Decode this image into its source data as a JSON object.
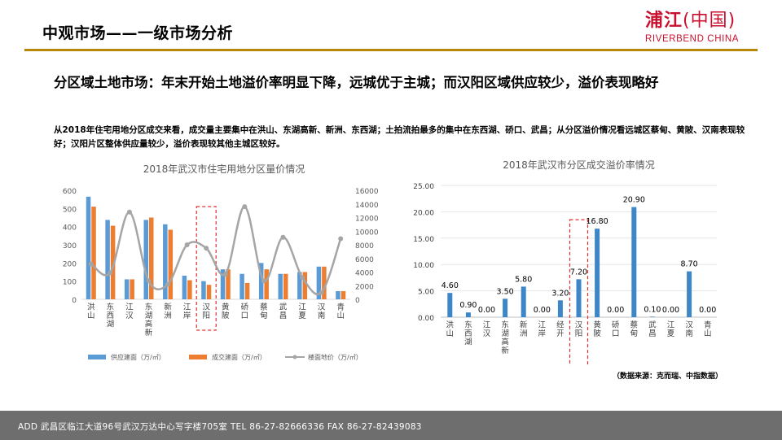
{
  "header": {
    "title": "中观市场——一级市场分析",
    "logo_cn_main": "浦江",
    "logo_cn_sub": "(中国)",
    "logo_en": "RIVERBEND CHINA"
  },
  "headline": "分区域土地市场：年末开始土地溢价率明显下降，远城优于主城；而汉阳区域供应较少，溢价表现略好",
  "description": "从2018年住宅用地分区成交来看，成交量主要集中在洪山、东湖高新、新洲、东西湖；土拍流拍最多的集中在东西湖、硚口、武昌；从分区溢价情况看远城区蔡甸、黄陂、汉南表现较好；汉阳片区整体供应量较少，溢价表现较其他主城区较好。",
  "source_note": "（数据来源：克而瑞、中指数据）",
  "footer": {
    "text": "ADD  武昌区临江大道96号武汉万达中心写字楼705室    TEL  86-27-82666336  FAX  86-27-82439083"
  },
  "colors": {
    "supply": "#5b9bd5",
    "deal": "#ed7d31",
    "price": "#a5a5a5",
    "bar2": "#3d86c8",
    "highlight": "#e03030",
    "rule": "#b8860b",
    "footer_bg": "#6e6e6e"
  },
  "chart_data": [
    {
      "type": "bar",
      "title": "2018年武汉市住宅用地分区量价情况",
      "categories": [
        "洪山",
        "东西湖",
        "江汉",
        "东湖高新",
        "新洲",
        "江岸",
        "汉阳",
        "黄陂",
        "硚口",
        "蔡甸",
        "武昌",
        "江夏",
        "汉南",
        "青山"
      ],
      "series": [
        {
          "name": "供应建面（万/㎡）",
          "kind": "bar",
          "axis": "left",
          "values": [
            565,
            437,
            110,
            437,
            413,
            130,
            100,
            165,
            140,
            200,
            140,
            150,
            180,
            45
          ]
        },
        {
          "name": "成交建面（万/㎡）",
          "kind": "bar",
          "axis": "left",
          "values": [
            510,
            405,
            110,
            450,
            383,
            105,
            80,
            165,
            90,
            165,
            140,
            150,
            180,
            45
          ]
        },
        {
          "name": "楼面地价（万/㎡）",
          "kind": "line",
          "axis": "right",
          "values": [
            5200,
            3900,
            12800,
            2700,
            2200,
            8000,
            7500,
            3700,
            13600,
            2700,
            9100,
            3200,
            1000,
            8900
          ]
        }
      ],
      "ylim_left": [
        0,
        600
      ],
      "yticks_left": [
        "0",
        "100",
        "200",
        "300",
        "400",
        "500",
        "600"
      ],
      "ylim_right": [
        0,
        16000
      ],
      "yticks_right": [
        "0",
        "2000",
        "4000",
        "6000",
        "8000",
        "10000",
        "12000",
        "14000",
        "16000"
      ],
      "highlight_category": "汉阳"
    },
    {
      "type": "bar",
      "title": "2018年武汉市分区成交溢价率情况",
      "categories": [
        "洪山",
        "东西湖",
        "江汉",
        "东湖高新",
        "新洲",
        "江岸",
        "经开",
        "汉阳",
        "黄陂",
        "硚口",
        "蔡甸",
        "武昌",
        "江夏",
        "汉南",
        "青山"
      ],
      "values": [
        4.6,
        0.9,
        0.0,
        3.5,
        5.8,
        0.0,
        3.2,
        7.2,
        16.8,
        0.0,
        20.9,
        0.1,
        0.0,
        8.7,
        0.0
      ],
      "labels": [
        "4.60",
        "0.90",
        "0.00",
        "3.50",
        "5.80",
        "0.00",
        "3.20",
        "7.20",
        "16.80",
        "0.00",
        "20.90",
        "0.10",
        "0.00",
        "8.70",
        "0.00"
      ],
      "ylim": [
        0,
        25
      ],
      "yticks": [
        "0.00",
        "5.00",
        "10.00",
        "15.00",
        "20.00",
        "25.00"
      ],
      "highlight_category": "汉阳"
    }
  ]
}
